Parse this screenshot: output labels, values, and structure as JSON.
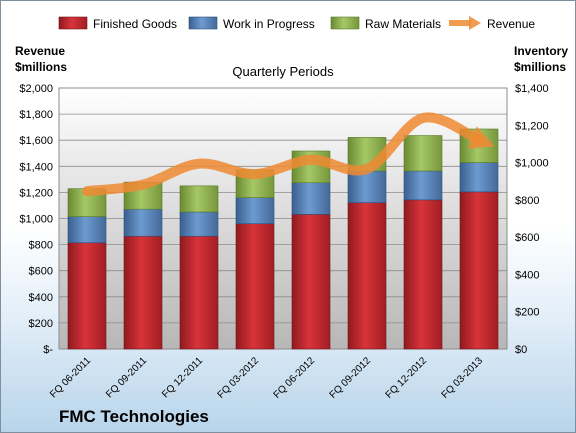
{
  "chart_data": {
    "type": "bar",
    "stacked": true,
    "categories": [
      "FQ 06-2011",
      "FQ 09-2011",
      "FQ 12-2011",
      "FQ 03-2012",
      "FQ 06-2012",
      "FQ 09-2012",
      "FQ 12-2012",
      "FQ 03-2013"
    ],
    "series": [
      {
        "name": "Finished Goods",
        "axis": "right",
        "color": "#c0262d",
        "values": [
          570,
          605,
          605,
          672,
          722,
          785,
          800,
          843
        ]
      },
      {
        "name": "Work in Progress",
        "axis": "right",
        "color": "#4f81bd",
        "values": [
          140,
          145,
          130,
          140,
          170,
          170,
          155,
          157
        ]
      },
      {
        "name": "Raw Materials",
        "axis": "right",
        "color": "#8db14a",
        "values": [
          150,
          145,
          140,
          150,
          170,
          180,
          190,
          180
        ]
      },
      {
        "name": "Revenue",
        "type": "line",
        "axis": "left",
        "color": "#ef8a33",
        "values": [
          1210,
          1260,
          1420,
          1340,
          1450,
          1380,
          1770,
          1600
        ]
      }
    ],
    "title": "Quarterly Periods",
    "left_axis": {
      "label_line1": "Revenue",
      "label_line2": "$millions",
      "ylim": [
        0,
        2000
      ],
      "ticks": [
        "$-",
        "$200",
        "$400",
        "$600",
        "$800",
        "$1,000",
        "$1,200",
        "$1,400",
        "$1,600",
        "$1,800",
        "$2,000"
      ]
    },
    "right_axis": {
      "label_line1": "Inventory",
      "label_line2": "$millions",
      "ylim": [
        0,
        1400
      ],
      "ticks": [
        "$0",
        "$200",
        "$400",
        "$600",
        "$800",
        "$1,000",
        "$1,200",
        "$1,400"
      ]
    },
    "grid": true,
    "legend_position": "top",
    "legend": [
      "Finished Goods",
      "Work in Progress",
      "Raw Materials",
      "Revenue"
    ]
  },
  "company": "FMC Technologies"
}
